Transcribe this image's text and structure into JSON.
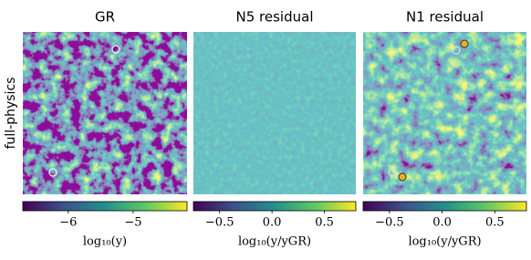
{
  "row_label": "full-physics",
  "chart_data": [
    {
      "type": "heatmap",
      "title": "GR",
      "colorbar_label": "log₁₀(y)",
      "clim": [
        -6.7,
        -4.17
      ],
      "cticks": [
        {
          "value": -6,
          "label": "−6"
        },
        {
          "value": -5,
          "label": "−5"
        }
      ]
    },
    {
      "type": "heatmap",
      "title": "N5 residual",
      "colorbar_label": "log₁₀(y/yGR)",
      "clim": [
        -0.75,
        0.8
      ],
      "cticks": [
        {
          "value": -0.5,
          "label": "−0.5"
        },
        {
          "value": 0,
          "label": "0.0"
        },
        0.5
      ]
    },
    {
      "type": "heatmap",
      "title": "N1 residual",
      "colorbar_label": "log₁₀(y/yGR)",
      "clim": [
        -0.75,
        0.8
      ],
      "cticks": [
        {
          "value": -0.5,
          "label": "−0.5"
        },
        {
          "value": 0,
          "label": "0.0"
        },
        0.5
      ]
    }
  ]
}
